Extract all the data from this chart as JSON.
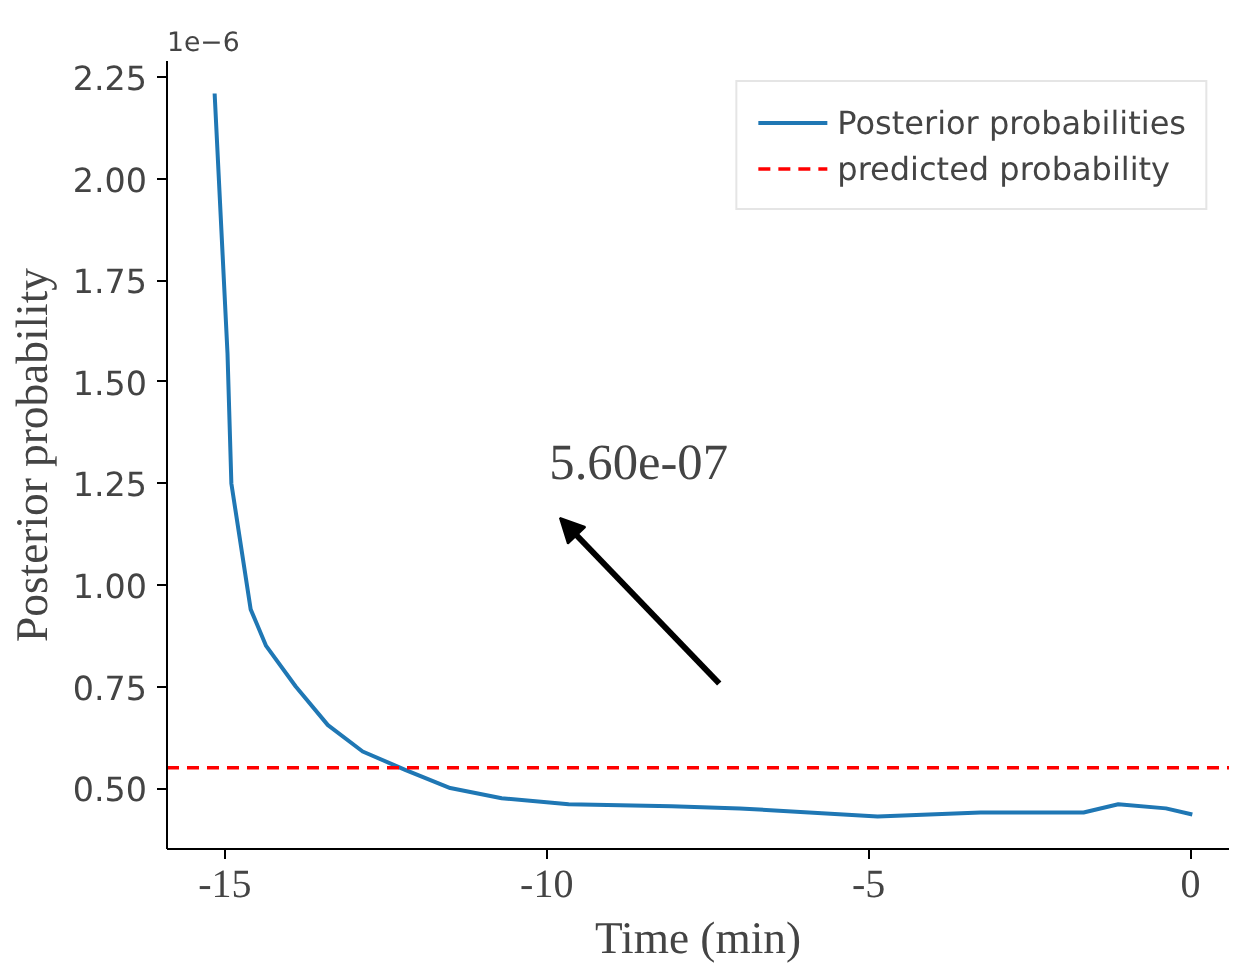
{
  "chart_data": {
    "type": "line",
    "xlabel": "Time (min)",
    "ylabel": "Posterior probability",
    "series": [
      {
        "name": "Posterior probabilities",
        "color": "#1f77b4",
        "x": [
          -15.16,
          -14.96,
          -14.9,
          -14.6,
          -14.36,
          -13.9,
          -13.4,
          -12.86,
          -12.2,
          -11.5,
          -10.7,
          -9.66,
          -8.06,
          -7.0,
          -4.86,
          -3.26,
          -1.66,
          -1.12,
          -0.38,
          0.03
        ],
        "values": [
          2.21,
          1.57,
          1.25,
          0.94,
          0.85,
          0.75,
          0.655,
          0.59,
          0.545,
          0.5,
          0.475,
          0.46,
          0.455,
          0.45,
          0.43,
          0.44,
          0.44,
          0.46,
          0.45,
          0.435
        ]
      }
    ],
    "ref_lines": [
      {
        "axis": "y",
        "value": 0.55,
        "label": "predicted probability",
        "color": "#ff0000",
        "line_style": "dashed"
      }
    ],
    "annotations": [
      "1e−6",
      "5.60e-07"
    ],
    "xlim": [
      -15.9,
      0.6
    ],
    "ylim": [
      0.35,
      2.29
    ],
    "xticks": [
      {
        "value": -15,
        "label": "-15"
      },
      {
        "value": -10,
        "label": "-10"
      },
      {
        "value": -5,
        "label": "-5"
      },
      0
    ],
    "yticks": [
      {
        "value": 0.5,
        "label": "0.50"
      },
      {
        "value": 0.75,
        "label": "0.75"
      },
      {
        "value": 1.0,
        "label": "1.00"
      },
      {
        "value": 1.25,
        "label": "1.25"
      },
      {
        "value": 1.5,
        "label": "1.50"
      },
      {
        "value": 1.75,
        "label": "1.75"
      },
      {
        "value": 2.0,
        "label": "2.00"
      },
      {
        "value": 2.25,
        "label": "2.25"
      }
    ],
    "grid": false,
    "legend": "top right",
    "line_style": "solid",
    "marker": "none"
  }
}
